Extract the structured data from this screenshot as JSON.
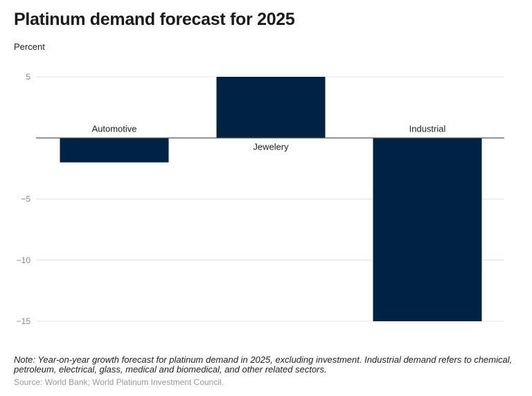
{
  "header": {
    "title": "Platinum demand forecast for 2025",
    "unit": "Percent"
  },
  "footer": {
    "note": "Note: Year-on-year growth forecast for platinum demand in 2025, excluding investment. Industrial demand refers to chemical, petroleum, electrical, glass, medical and biomedical, and other related sectors.",
    "source": "Source: World Bank; World Platinum Investment Council."
  },
  "colors": {
    "bar": "#002244",
    "grid": "#e3e3e3",
    "zero_line": "#555555",
    "tick_text": "#888888"
  },
  "chart_data": {
    "type": "bar",
    "title": "Platinum demand forecast for 2025",
    "ylabel": "Percent",
    "categories": [
      "Automotive",
      "Jewelery",
      "Industrial"
    ],
    "values": [
      -2,
      5,
      -15
    ],
    "ylim": [
      -15,
      5
    ],
    "yticks": [
      5,
      0,
      -5,
      -10,
      -15
    ],
    "ytick_labels": [
      "5",
      "",
      "−5",
      "−10",
      "−15"
    ],
    "grid": true,
    "legend": "none"
  }
}
